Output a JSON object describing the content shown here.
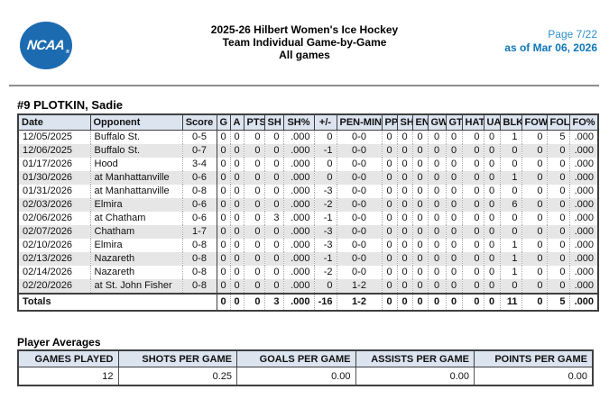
{
  "header": {
    "logo_text": "NCAA",
    "logo_reg_mark": "®",
    "title_lines": [
      "2025-26 Hilbert Women's Ice Hockey",
      "Team Individual Game-by-Game",
      "All games"
    ],
    "page_number": "Page 7/22",
    "as_of": "as of Mar 06, 2026"
  },
  "player": {
    "heading": "#9 PLOTKIN, Sadie"
  },
  "game_table": {
    "columns": [
      "Date",
      "Opponent",
      "Score",
      "G",
      "A",
      "PTS",
      "SH",
      "SH%",
      "+/-",
      "PEN-MIN",
      "PP",
      "SH",
      "EN",
      "GW",
      "GT",
      "HAT",
      "UA",
      "BLK",
      "FOW",
      "FOL",
      "FO%"
    ],
    "rows": [
      [
        "12/05/2025",
        "Buffalo St.",
        "0-5",
        "0",
        "0",
        "0",
        "0",
        ".000",
        "0",
        "0-0",
        "0",
        "0",
        "0",
        "0",
        "0",
        "0",
        "0",
        "1",
        "0",
        "5",
        ".000"
      ],
      [
        "12/06/2025",
        "Buffalo St.",
        "0-7",
        "0",
        "0",
        "0",
        "0",
        ".000",
        "-1",
        "0-0",
        "0",
        "0",
        "0",
        "0",
        "0",
        "0",
        "0",
        "0",
        "0",
        "0",
        ".000"
      ],
      [
        "01/17/2026",
        "Hood",
        "3-4",
        "0",
        "0",
        "0",
        "0",
        ".000",
        "0",
        "0-0",
        "0",
        "0",
        "0",
        "0",
        "0",
        "0",
        "0",
        "0",
        "0",
        "0",
        ".000"
      ],
      [
        "01/30/2026",
        "at Manhattanville",
        "0-6",
        "0",
        "0",
        "0",
        "0",
        ".000",
        "0",
        "0-0",
        "0",
        "0",
        "0",
        "0",
        "0",
        "0",
        "0",
        "1",
        "0",
        "0",
        ".000"
      ],
      [
        "01/31/2026",
        "at Manhattanville",
        "0-8",
        "0",
        "0",
        "0",
        "0",
        ".000",
        "-3",
        "0-0",
        "0",
        "0",
        "0",
        "0",
        "0",
        "0",
        "0",
        "0",
        "0",
        "0",
        ".000"
      ],
      [
        "02/03/2026",
        "Elmira",
        "0-6",
        "0",
        "0",
        "0",
        "0",
        ".000",
        "-2",
        "0-0",
        "0",
        "0",
        "0",
        "0",
        "0",
        "0",
        "0",
        "6",
        "0",
        "0",
        ".000"
      ],
      [
        "02/06/2026",
        "at Chatham",
        "0-6",
        "0",
        "0",
        "0",
        "3",
        ".000",
        "-1",
        "0-0",
        "0",
        "0",
        "0",
        "0",
        "0",
        "0",
        "0",
        "0",
        "0",
        "0",
        ".000"
      ],
      [
        "02/07/2026",
        "Chatham",
        "1-7",
        "0",
        "0",
        "0",
        "0",
        ".000",
        "-3",
        "0-0",
        "0",
        "0",
        "0",
        "0",
        "0",
        "0",
        "0",
        "0",
        "0",
        "0",
        ".000"
      ],
      [
        "02/10/2026",
        "Elmira",
        "0-8",
        "0",
        "0",
        "0",
        "0",
        ".000",
        "-3",
        "0-0",
        "0",
        "0",
        "0",
        "0",
        "0",
        "0",
        "0",
        "1",
        "0",
        "0",
        ".000"
      ],
      [
        "02/13/2026",
        "Nazareth",
        "0-8",
        "0",
        "0",
        "0",
        "0",
        ".000",
        "-1",
        "0-0",
        "0",
        "0",
        "0",
        "0",
        "0",
        "0",
        "0",
        "1",
        "0",
        "0",
        ".000"
      ],
      [
        "02/14/2026",
        "Nazareth",
        "0-8",
        "0",
        "0",
        "0",
        "0",
        ".000",
        "-2",
        "0-0",
        "0",
        "0",
        "0",
        "0",
        "0",
        "0",
        "0",
        "1",
        "0",
        "0",
        ".000"
      ],
      [
        "02/20/2026",
        "at St. John Fisher",
        "0-8",
        "0",
        "0",
        "0",
        "0",
        ".000",
        "0",
        "1-2",
        "0",
        "0",
        "0",
        "0",
        "0",
        "0",
        "0",
        "0",
        "0",
        "0",
        ".000"
      ]
    ],
    "totals": {
      "label": "Totals",
      "values": [
        "0",
        "0",
        "0",
        "3",
        ".000",
        "-16",
        "1-2",
        "0",
        "0",
        "0",
        "0",
        "0",
        "0",
        "0",
        "11",
        "0",
        "5",
        ".000"
      ]
    }
  },
  "averages": {
    "heading": "Player Averages",
    "columns": [
      "GAMES PLAYED",
      "SHOTS PER GAME",
      "GOALS PER GAME",
      "ASSISTS PER GAME",
      "POINTS PER GAME"
    ],
    "values": [
      "12",
      "0.25",
      "0.00",
      "0.00",
      "0.00"
    ]
  },
  "colors": {
    "ncaa_blue": "#1c6bb0",
    "page_number_blue": "#2e8fcc",
    "as_of_blue": "#0f76b6",
    "table_header_bg": "#dce4f0",
    "row_stripe": "#e6e6e6",
    "border_dark": "#3f3f3f"
  }
}
